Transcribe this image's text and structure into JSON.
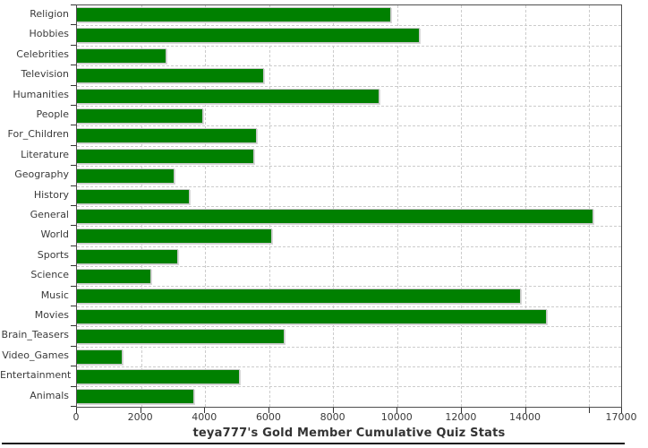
{
  "chart_data": {
    "type": "bar",
    "orientation": "horizontal",
    "title": "teya777's Gold Member Cumulative Quiz Stats",
    "categories": [
      "Religion",
      "Hobbies",
      "Celebrities",
      "Television",
      "Humanities",
      "People",
      "For_Children",
      "Literature",
      "Geography",
      "History",
      "General",
      "World",
      "Sports",
      "Science",
      "Music",
      "Movies",
      "Brain_Teasers",
      "Video_Games",
      "Entertainment",
      "Animals"
    ],
    "values": [
      9810,
      10720,
      2810,
      5840,
      9440,
      3930,
      5630,
      5540,
      3050,
      3510,
      16130,
      6090,
      3150,
      2315,
      13880,
      14680,
      6490,
      1420,
      5090,
      3660
    ],
    "xlabel": "",
    "ylabel": "",
    "xlim": [
      0,
      17000
    ],
    "x_gridlines": [
      2000,
      4000,
      6000,
      8000,
      10000,
      12000,
      14000,
      16000
    ],
    "x_tick_marks": [
      0,
      2000,
      4000,
      6000,
      8000,
      10000,
      12000,
      14000,
      16000,
      17000
    ],
    "x_tick_labels": [
      {
        "value": 0,
        "label": "0"
      },
      {
        "value": 2000,
        "label": "2000"
      },
      {
        "value": 4000,
        "label": "4000"
      },
      {
        "value": 6000,
        "label": "6000"
      },
      {
        "value": 8000,
        "label": "8000"
      },
      {
        "value": 10000,
        "label": "10000"
      },
      {
        "value": 12000,
        "label": "12000"
      },
      {
        "value": 14000,
        "label": "14000"
      },
      {
        "value": 17000,
        "label": "17000"
      }
    ],
    "grid": "dashed, horizontal and vertical",
    "legend": "none",
    "colors": {
      "bar": "#008000",
      "bar_outline": "#c9c9c9",
      "gridline": "#cccccc",
      "plot_border": "#4f4f4f",
      "axis": "#333333",
      "text": "#3a3a3a",
      "background": "#ffffff",
      "bottom_rule": "#161616"
    }
  }
}
